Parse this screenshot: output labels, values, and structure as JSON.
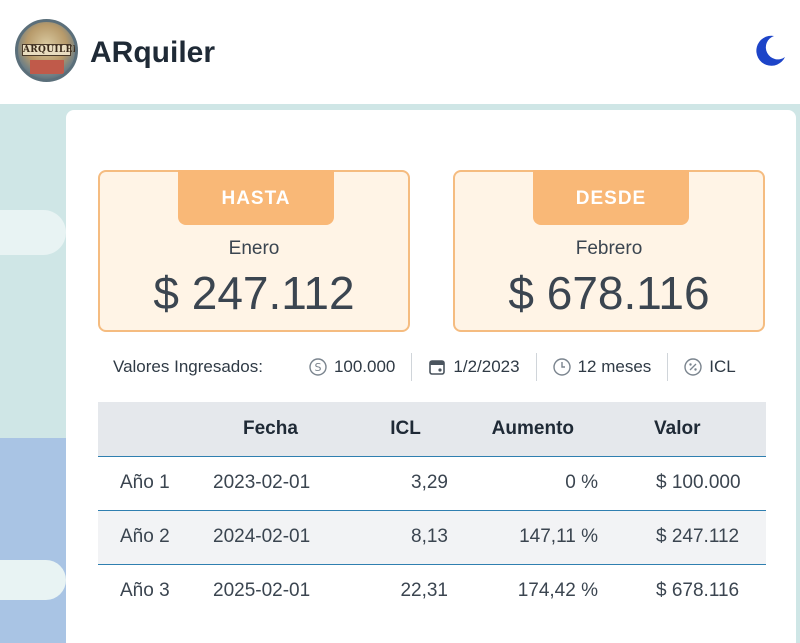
{
  "header": {
    "logo_text": "ARQUILER",
    "brand": "ARquiler",
    "theme_icon": "moon-icon"
  },
  "results": [
    {
      "tab": "HASTA",
      "month": "Enero",
      "amount": "$ 247.112"
    },
    {
      "tab": "DESDE",
      "month": "Febrero",
      "amount": "$ 678.116"
    }
  ],
  "inputs": {
    "label": "Valores Ingresados:",
    "amount": {
      "icon": "dollar-circle-icon",
      "value": "100.000"
    },
    "date": {
      "icon": "calendar-icon",
      "value": "1/2/2023"
    },
    "period": {
      "icon": "clock-icon",
      "value": "12 meses"
    },
    "index": {
      "icon": "percent-circle-icon",
      "value": "ICL"
    }
  },
  "table": {
    "columns": [
      "",
      "Fecha",
      "ICL",
      "Aumento",
      "Valor"
    ],
    "rows": [
      [
        "Año 1",
        "2023-02-01",
        "3,29",
        "0 %",
        "$ 100.000"
      ],
      [
        "Año 2",
        "2024-02-01",
        "8,13",
        "147,11 %",
        "$ 247.112"
      ],
      [
        "Año 3",
        "2025-02-01",
        "22,31",
        "174,42 %",
        "$ 678.116"
      ]
    ]
  },
  "colors": {
    "accent": "#f9b877",
    "card_bg": "#fff4e6",
    "row_border": "#2f7fb0",
    "moon": "#1d44c8"
  }
}
